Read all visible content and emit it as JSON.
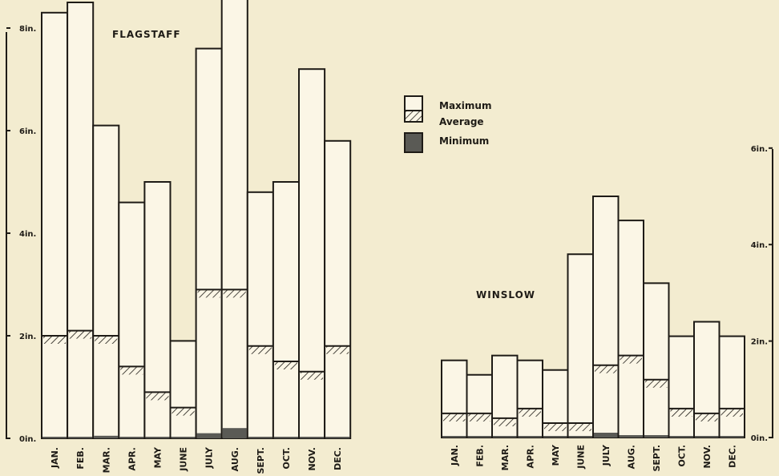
{
  "colors": {
    "background": "#f3ecd0",
    "ink": "#1e1b16",
    "bar_fill": "#fbf6e6",
    "minimum": "#5a5a55"
  },
  "legend": {
    "position": "center-top",
    "items": [
      {
        "label": "Maximum",
        "pattern": "open"
      },
      {
        "label": "Average",
        "pattern": "hatched"
      },
      {
        "label": "Minimum",
        "pattern": "solid-dark"
      }
    ]
  },
  "chart_data": [
    {
      "type": "bar",
      "title": "FLAGSTAFF",
      "axis_side": "left",
      "ylim": [
        0,
        8.5
      ],
      "yticks": [
        0,
        2,
        4,
        6,
        8
      ],
      "ytick_labels": [
        "0in.",
        "2in.",
        "4in.",
        "6in.",
        "8in."
      ],
      "categories": [
        "JAN.",
        "FEB.",
        "MAR.",
        "APR.",
        "MAY",
        "JUNE",
        "JULY",
        "AUG.",
        "SEPT.",
        "OCT.",
        "NOV.",
        "DEC."
      ],
      "series": [
        {
          "name": "Maximum",
          "values": [
            8.3,
            8.5,
            6.1,
            4.6,
            5.0,
            1.9,
            7.6,
            8.7,
            4.8,
            5.0,
            7.2,
            5.8
          ]
        },
        {
          "name": "Average",
          "values": [
            2.0,
            2.1,
            2.0,
            1.4,
            0.9,
            0.6,
            2.9,
            2.9,
            1.8,
            1.5,
            1.3,
            1.8
          ]
        },
        {
          "name": "Minimum",
          "values": [
            0.0,
            0.0,
            0.05,
            0.0,
            0.0,
            0.0,
            0.1,
            0.2,
            0.0,
            0.0,
            0.0,
            0.0
          ]
        }
      ]
    },
    {
      "type": "bar",
      "title": "WINSLOW",
      "axis_side": "right",
      "ylim": [
        0,
        6
      ],
      "yticks": [
        0,
        2,
        4,
        6
      ],
      "ytick_labels": [
        "0in.",
        "2in.",
        "4in.",
        "6in."
      ],
      "categories": [
        "JAN.",
        "FEB.",
        "MAR.",
        "APR.",
        "MAY",
        "JUNE",
        "JULY",
        "AUG.",
        "SEPT.",
        "OCT.",
        "NOV.",
        "DEC."
      ],
      "series": [
        {
          "name": "Maximum",
          "values": [
            1.6,
            1.3,
            1.7,
            1.6,
            1.4,
            3.8,
            5.0,
            4.5,
            3.2,
            2.1,
            2.4,
            2.1
          ]
        },
        {
          "name": "Average",
          "values": [
            0.5,
            0.5,
            0.4,
            0.6,
            0.3,
            0.3,
            1.5,
            1.7,
            1.2,
            0.6,
            0.5,
            0.6
          ]
        },
        {
          "name": "Minimum",
          "values": [
            0.0,
            0.0,
            0.0,
            0.0,
            0.0,
            0.0,
            0.1,
            0.05,
            0.05,
            0.0,
            0.0,
            0.0
          ]
        }
      ]
    }
  ]
}
